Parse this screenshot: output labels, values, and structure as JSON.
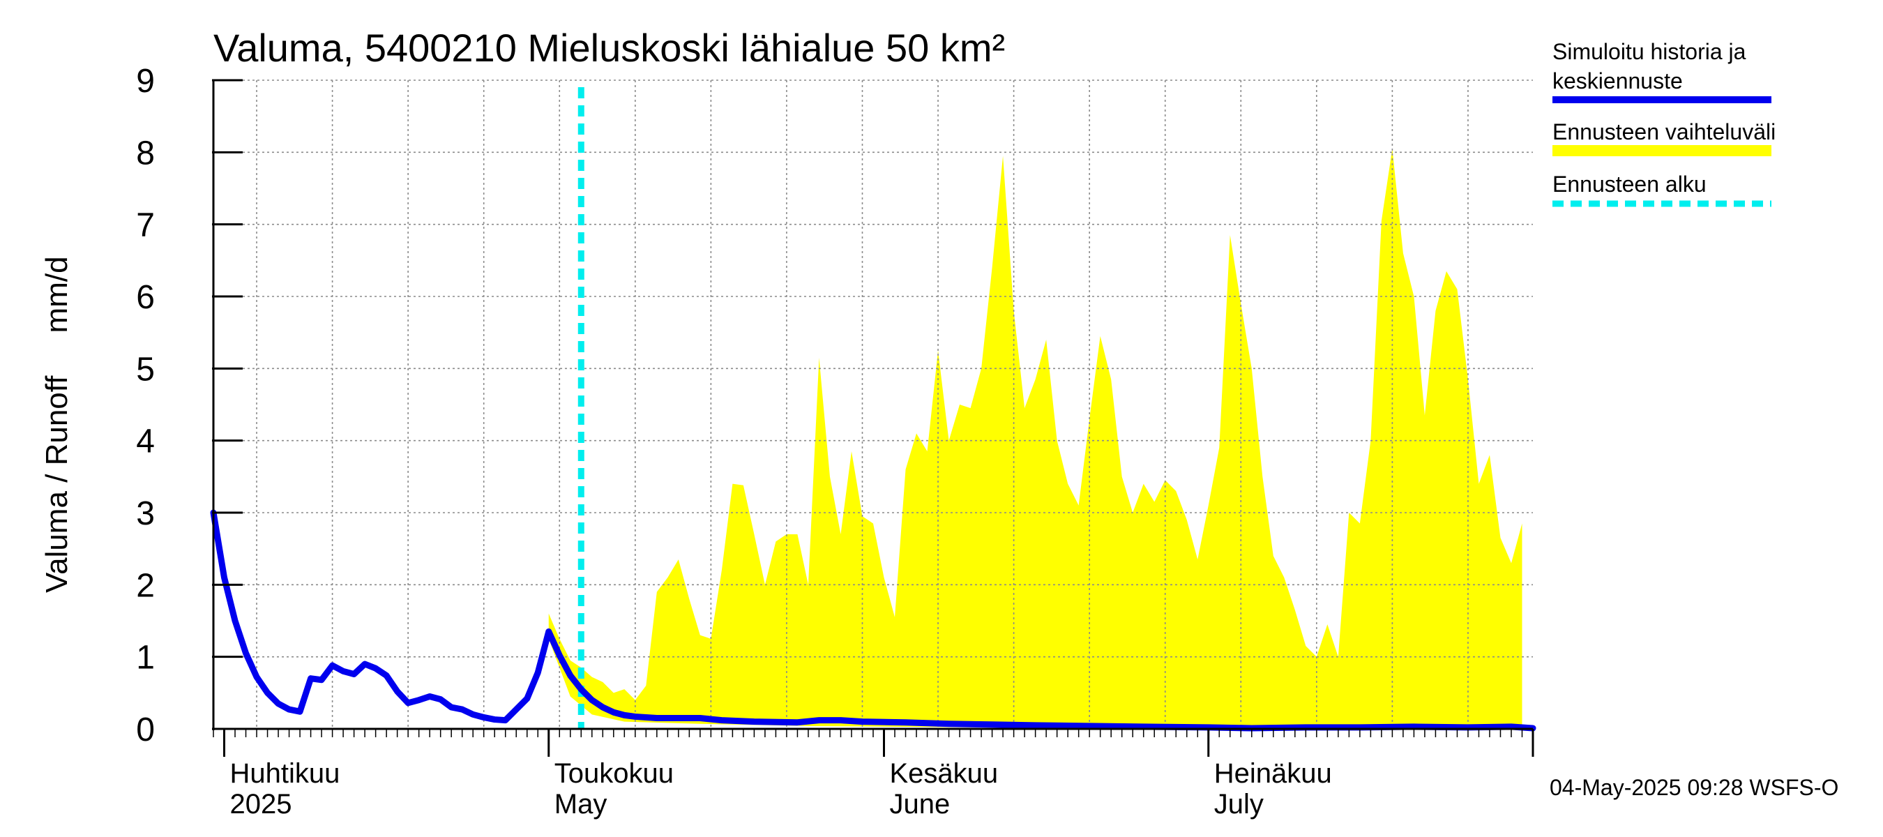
{
  "chart_data": {
    "type": "line",
    "title": "Valuma, 5400210 Mieluskoski lähialue 50 km²",
    "ylabel": "Valuma / Runoff     mm/d",
    "ylim": [
      0,
      9
    ],
    "yticks": [
      0,
      1,
      2,
      3,
      4,
      5,
      6,
      7,
      8,
      9
    ],
    "xlim": [
      "2025-03-31",
      "2025-07-31"
    ],
    "grid": true,
    "legend_position": "right",
    "month_labels": [
      {
        "date": "2025-04-01",
        "line1": "Huhtikuu",
        "line2": "2025"
      },
      {
        "date": "2025-05-01",
        "line1": "Toukokuu",
        "line2": "May"
      },
      {
        "date": "2025-06-01",
        "line1": "Kesäkuu",
        "line2": "June"
      },
      {
        "date": "2025-07-01",
        "line1": "Heinäkuu",
        "line2": "July"
      }
    ],
    "forecast_start": "2025-05-04",
    "series": [
      {
        "name": "Simuloitu historia ja keskiennuste",
        "kind": "line",
        "color": "#0000ee",
        "points": [
          [
            "2025-03-31",
            3.0
          ],
          [
            "2025-04-01",
            2.1
          ],
          [
            "2025-04-02",
            1.5
          ],
          [
            "2025-04-03",
            1.05
          ],
          [
            "2025-04-04",
            0.72
          ],
          [
            "2025-04-05",
            0.5
          ],
          [
            "2025-04-06",
            0.35
          ],
          [
            "2025-04-07",
            0.27
          ],
          [
            "2025-04-08",
            0.24
          ],
          [
            "2025-04-09",
            0.7
          ],
          [
            "2025-04-10",
            0.68
          ],
          [
            "2025-04-11",
            0.88
          ],
          [
            "2025-04-12",
            0.8
          ],
          [
            "2025-04-13",
            0.76
          ],
          [
            "2025-04-14",
            0.9
          ],
          [
            "2025-04-15",
            0.84
          ],
          [
            "2025-04-16",
            0.74
          ],
          [
            "2025-04-17",
            0.52
          ],
          [
            "2025-04-18",
            0.36
          ],
          [
            "2025-04-19",
            0.4
          ],
          [
            "2025-04-20",
            0.45
          ],
          [
            "2025-04-21",
            0.41
          ],
          [
            "2025-04-22",
            0.3
          ],
          [
            "2025-04-23",
            0.27
          ],
          [
            "2025-04-24",
            0.2
          ],
          [
            "2025-04-25",
            0.16
          ],
          [
            "2025-04-26",
            0.13
          ],
          [
            "2025-04-27",
            0.12
          ],
          [
            "2025-04-29",
            0.42
          ],
          [
            "2025-04-30",
            0.78
          ],
          [
            "2025-05-01",
            1.35
          ],
          [
            "2025-05-02",
            1.02
          ],
          [
            "2025-05-03",
            0.74
          ],
          [
            "2025-05-04",
            0.55
          ],
          [
            "2025-05-05",
            0.4
          ],
          [
            "2025-05-06",
            0.3
          ],
          [
            "2025-05-07",
            0.23
          ],
          [
            "2025-05-08",
            0.19
          ],
          [
            "2025-05-09",
            0.17
          ],
          [
            "2025-05-11",
            0.15
          ],
          [
            "2025-05-15",
            0.15
          ],
          [
            "2025-05-17",
            0.12
          ],
          [
            "2025-05-20",
            0.1
          ],
          [
            "2025-05-24",
            0.09
          ],
          [
            "2025-05-26",
            0.12
          ],
          [
            "2025-05-28",
            0.12
          ],
          [
            "2025-05-30",
            0.1
          ],
          [
            "2025-06-03",
            0.09
          ],
          [
            "2025-06-07",
            0.07
          ],
          [
            "2025-06-11",
            0.06
          ],
          [
            "2025-06-15",
            0.05
          ],
          [
            "2025-06-20",
            0.04
          ],
          [
            "2025-06-25",
            0.03
          ],
          [
            "2025-07-01",
            0.02
          ],
          [
            "2025-07-05",
            0.01
          ],
          [
            "2025-07-10",
            0.02
          ],
          [
            "2025-07-15",
            0.02
          ],
          [
            "2025-07-20",
            0.03
          ],
          [
            "2025-07-25",
            0.02
          ],
          [
            "2025-07-29",
            0.03
          ],
          [
            "2025-07-31",
            0.01
          ]
        ]
      },
      {
        "name": "Ennusteen vaihteluväli",
        "kind": "band",
        "color": "#ffff00",
        "upper": [
          [
            "2025-05-01",
            1.6
          ],
          [
            "2025-05-02",
            1.25
          ],
          [
            "2025-05-03",
            0.95
          ],
          [
            "2025-05-04",
            0.85
          ],
          [
            "2025-05-05",
            0.72
          ],
          [
            "2025-05-06",
            0.65
          ],
          [
            "2025-05-07",
            0.5
          ],
          [
            "2025-05-08",
            0.55
          ],
          [
            "2025-05-09",
            0.4
          ],
          [
            "2025-05-10",
            0.6
          ],
          [
            "2025-05-11",
            1.9
          ],
          [
            "2025-05-12",
            2.1
          ],
          [
            "2025-05-13",
            2.35
          ],
          [
            "2025-05-14",
            1.8
          ],
          [
            "2025-05-15",
            1.3
          ],
          [
            "2025-05-16",
            1.25
          ],
          [
            "2025-05-17",
            2.2
          ],
          [
            "2025-05-18",
            3.4
          ],
          [
            "2025-05-19",
            3.38
          ],
          [
            "2025-05-20",
            2.7
          ],
          [
            "2025-05-21",
            2.0
          ],
          [
            "2025-05-22",
            2.6
          ],
          [
            "2025-05-23",
            2.7
          ],
          [
            "2025-05-24",
            2.7
          ],
          [
            "2025-05-25",
            2.0
          ],
          [
            "2025-05-26",
            5.15
          ],
          [
            "2025-05-27",
            3.5
          ],
          [
            "2025-05-28",
            2.7
          ],
          [
            "2025-05-29",
            3.85
          ],
          [
            "2025-05-30",
            2.95
          ],
          [
            "2025-05-31",
            2.85
          ],
          [
            "2025-06-01",
            2.1
          ],
          [
            "2025-06-02",
            1.55
          ],
          [
            "2025-06-03",
            3.6
          ],
          [
            "2025-06-04",
            4.1
          ],
          [
            "2025-06-05",
            3.85
          ],
          [
            "2025-06-06",
            5.25
          ],
          [
            "2025-06-07",
            4.0
          ],
          [
            "2025-06-08",
            4.5
          ],
          [
            "2025-06-09",
            4.45
          ],
          [
            "2025-06-10",
            5.0
          ],
          [
            "2025-06-11",
            6.4
          ],
          [
            "2025-06-12",
            7.95
          ],
          [
            "2025-06-13",
            5.8
          ],
          [
            "2025-06-14",
            4.45
          ],
          [
            "2025-06-15",
            4.85
          ],
          [
            "2025-06-16",
            5.4
          ],
          [
            "2025-06-17",
            4.0
          ],
          [
            "2025-06-18",
            3.4
          ],
          [
            "2025-06-19",
            3.1
          ],
          [
            "2025-06-20",
            4.3
          ],
          [
            "2025-06-21",
            5.45
          ],
          [
            "2025-06-22",
            4.85
          ],
          [
            "2025-06-23",
            3.5
          ],
          [
            "2025-06-24",
            3.0
          ],
          [
            "2025-06-25",
            3.4
          ],
          [
            "2025-06-26",
            3.15
          ],
          [
            "2025-06-27",
            3.45
          ],
          [
            "2025-06-28",
            3.3
          ],
          [
            "2025-06-29",
            2.9
          ],
          [
            "2025-06-30",
            2.35
          ],
          [
            "2025-07-01",
            3.1
          ],
          [
            "2025-07-02",
            3.9
          ],
          [
            "2025-07-03",
            6.85
          ],
          [
            "2025-07-04",
            5.9
          ],
          [
            "2025-07-05",
            5.0
          ],
          [
            "2025-07-06",
            3.5
          ],
          [
            "2025-07-07",
            2.4
          ],
          [
            "2025-07-08",
            2.1
          ],
          [
            "2025-07-09",
            1.65
          ],
          [
            "2025-07-10",
            1.15
          ],
          [
            "2025-07-11",
            1.0
          ],
          [
            "2025-07-12",
            1.45
          ],
          [
            "2025-07-13",
            1.0
          ],
          [
            "2025-07-14",
            3.0
          ],
          [
            "2025-07-15",
            2.85
          ],
          [
            "2025-07-16",
            4.0
          ],
          [
            "2025-07-17",
            7.05
          ],
          [
            "2025-07-18",
            8.05
          ],
          [
            "2025-07-19",
            6.6
          ],
          [
            "2025-07-20",
            6.0
          ],
          [
            "2025-07-21",
            4.35
          ],
          [
            "2025-07-22",
            5.8
          ],
          [
            "2025-07-23",
            6.35
          ],
          [
            "2025-07-24",
            6.1
          ],
          [
            "2025-07-25",
            4.85
          ],
          [
            "2025-07-26",
            3.4
          ],
          [
            "2025-07-27",
            3.8
          ],
          [
            "2025-07-28",
            2.65
          ],
          [
            "2025-07-29",
            2.3
          ],
          [
            "2025-07-30",
            2.85
          ]
        ],
        "lower": [
          [
            "2025-05-01",
            1.25
          ],
          [
            "2025-05-03",
            0.45
          ],
          [
            "2025-05-05",
            0.2
          ],
          [
            "2025-05-08",
            0.1
          ],
          [
            "2025-05-15",
            0.07
          ],
          [
            "2025-05-25",
            0.04
          ],
          [
            "2025-06-10",
            0.02
          ],
          [
            "2025-07-30",
            0.01
          ]
        ]
      },
      {
        "name": "Ennusteen alku",
        "kind": "vline",
        "color": "#00eeee"
      }
    ]
  },
  "legend": [
    {
      "line1": "Simuloitu historia ja",
      "line2": "keskiennuste",
      "color": "#0000ee",
      "style": "solid"
    },
    {
      "line1": "Ennusteen vaihteluväli",
      "line2": "",
      "color": "#ffff00",
      "style": "solid"
    },
    {
      "line1": "Ennusteen alku",
      "line2": "",
      "color": "#00eeee",
      "style": "dashed"
    }
  ],
  "footer": "04-May-2025 09:28 WSFS-O"
}
